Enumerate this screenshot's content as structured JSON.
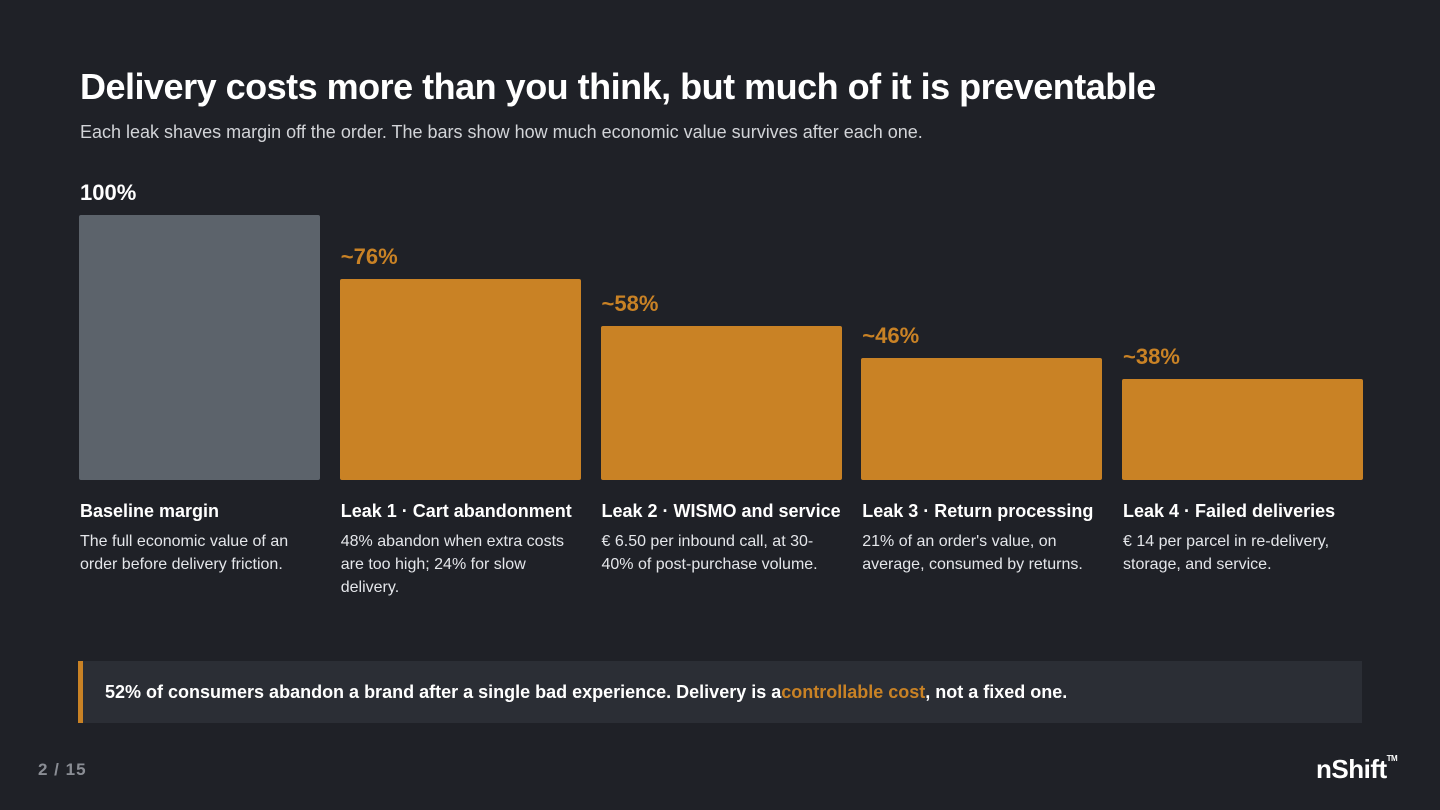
{
  "title": "Delivery costs more than you think, but much of it is preventable",
  "subtitle": "Each leak shaves margin off the order. The bars show how much economic value survives after each one.",
  "colors": {
    "baseline": "#5c636b",
    "leak": "#c98225",
    "accent": "#c98225",
    "background": "#1f2127"
  },
  "chart_data": {
    "type": "bar",
    "title": "",
    "xlabel": "",
    "ylabel": "",
    "ylim": [
      0,
      100
    ],
    "grid": false,
    "categories": [
      "Baseline margin",
      "Leak 1 · Cart abandonment",
      "Leak 2 · WISMO and service",
      "Leak 3 · Return processing",
      "Leak 4 · Failed deliveries"
    ],
    "values": [
      100,
      76,
      58,
      46,
      38
    ],
    "data_labels": [
      "100%",
      "~76%",
      "~58%",
      "~46%",
      "~38%"
    ],
    "descriptions": [
      "The full economic value of an order before delivery friction.",
      "48% abandon when extra costs are too high; 24% for slow delivery.",
      "€ 6.50 per inbound call, at 30-40% of post-purchase volume.",
      "21% of an order's value, on average, consumed by returns.",
      "€ 14 per parcel in re-delivery, storage, and service."
    ]
  },
  "callout": {
    "before": "52% of consumers abandon a brand after a single bad experience. Delivery is a ",
    "highlight": "controllable cost",
    "after": ", not a fixed one."
  },
  "footer": {
    "page": "2 / 15",
    "logo": "nShift",
    "logo_mark": "TM"
  }
}
